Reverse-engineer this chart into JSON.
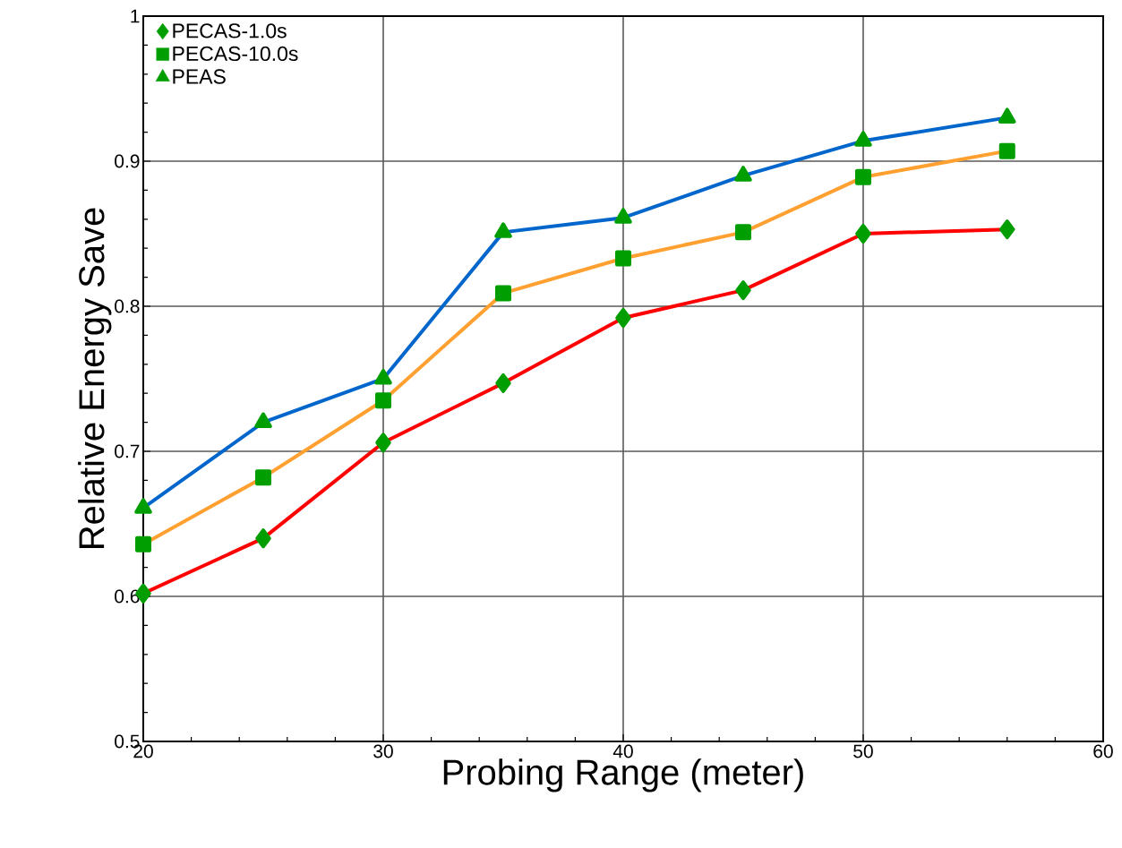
{
  "chart_data": {
    "type": "line",
    "xlabel": "Probing Range (meter)",
    "ylabel": "Relative Energy Save",
    "x": [
      20,
      25,
      30,
      35,
      40,
      45,
      50,
      56
    ],
    "series": [
      {
        "name": "PECAS-1.0s",
        "color": "#ff0000",
        "marker": "diamond",
        "values": [
          0.602,
          0.64,
          0.706,
          0.747,
          0.792,
          0.811,
          0.85,
          0.853
        ]
      },
      {
        "name": "PECAS-10.0s",
        "color": "#ffa030",
        "marker": "square",
        "values": [
          0.636,
          0.682,
          0.735,
          0.809,
          0.833,
          0.851,
          0.889,
          0.907
        ]
      },
      {
        "name": "PEAS",
        "color": "#0066cc",
        "marker": "triangle",
        "values": [
          0.661,
          0.72,
          0.75,
          0.851,
          0.861,
          0.89,
          0.914,
          0.93
        ]
      }
    ],
    "xlim": [
      20,
      60
    ],
    "ylim": [
      0.5,
      1
    ],
    "xticks": [
      20,
      30,
      40,
      50,
      60
    ],
    "yticks": [
      0.5,
      0.6,
      0.7,
      0.8,
      0.9,
      1
    ],
    "grid": true,
    "legend": "top left",
    "line_style": "solid"
  }
}
